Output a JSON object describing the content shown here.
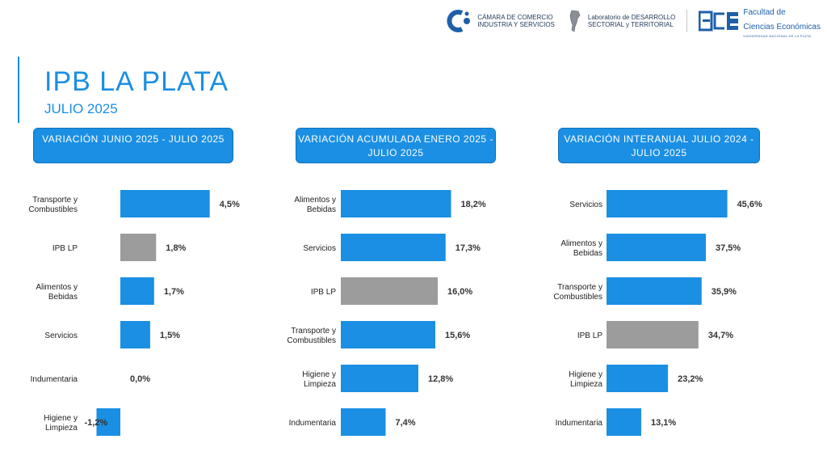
{
  "header": {
    "title": "IPB LA PLATA",
    "subtitle": "JULIO 2025"
  },
  "logos": [
    {
      "name": "camara-comercio",
      "text": "CÁMARA DE COMERCIO\nINDUSTRIA Y SERVICIOS"
    },
    {
      "name": "laboratorio",
      "text": "Laboratorio de DESARROLLO\nSECTORIAL y TERRITORIAL"
    },
    {
      "name": "fce",
      "text": "Facultad de\nCiencias Económicas",
      "sub": "UNIVERSIDAD NACIONAL DE LA PLATA"
    }
  ],
  "colors": {
    "accent": "#1a8fe3",
    "bar": "#1a8fe3",
    "highlight": "#9c9c9c"
  },
  "chart_data": [
    {
      "type": "bar",
      "orientation": "horizontal",
      "title": "VARIACIÓN JUNIO 2025 - JULIO 2025",
      "categories": [
        "Transporte y Combustibles",
        "IPB LP",
        "Alimentos y Bebidas",
        "Servicios",
        "Indumentaria",
        "Higiene y Limpieza"
      ],
      "values": [
        4.5,
        1.8,
        1.7,
        1.5,
        0.0,
        -1.2
      ],
      "labels": [
        "4,5%",
        "1,8%",
        "1,7%",
        "1,5%",
        "0,0%",
        "-1,2%"
      ],
      "highlight": "IPB LP",
      "xlim": [
        -1.2,
        4.5
      ]
    },
    {
      "type": "bar",
      "orientation": "horizontal",
      "title": "VARIACIÓN ACUMULADA ENERO 2025 - JULIO 2025",
      "categories": [
        "Alimentos y Bebidas",
        "Servicios",
        "IPB LP",
        "Transporte y Combustibles",
        "Higiene y Limpieza",
        "Indumentaria"
      ],
      "values": [
        18.2,
        17.3,
        16.0,
        15.6,
        12.8,
        7.4
      ],
      "labels": [
        "18,2%",
        "17,3%",
        "16,0%",
        "15,6%",
        "12,8%",
        "7,4%"
      ],
      "highlight": "IPB LP",
      "xlim": [
        0,
        18.2
      ]
    },
    {
      "type": "bar",
      "orientation": "horizontal",
      "title": "VARIACIÓN INTERANUAL JULIO 2024 - JULIO 2025",
      "categories": [
        "Servicios",
        "Alimentos y Bebidas",
        "Transporte y Combustibles",
        "IPB LP",
        "Higiene y Limpieza",
        "Indumentaria"
      ],
      "values": [
        45.6,
        37.5,
        35.9,
        34.7,
        23.2,
        13.1
      ],
      "labels": [
        "45,6%",
        "37,5%",
        "35,9%",
        "34,7%",
        "23,2%",
        "13,1%"
      ],
      "highlight": "IPB LP",
      "xlim": [
        0,
        45.6
      ]
    }
  ]
}
